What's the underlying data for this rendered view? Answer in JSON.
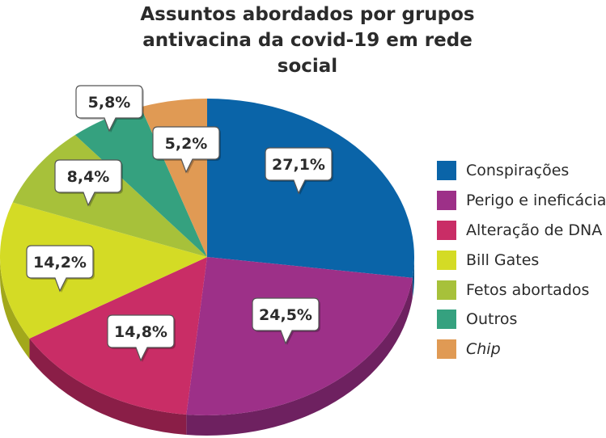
{
  "chart_data": {
    "type": "pie",
    "title_line1": "Assuntos abordados por grupos",
    "title_line2": "antivacina da covid-19 em rede social",
    "slices": [
      {
        "label": "Conspirações",
        "value": 27.1,
        "display": "27,1%",
        "color": "#0a64a8",
        "side": "#084f86",
        "italic": false
      },
      {
        "label": "Perigo e ineficácia",
        "value": 24.5,
        "display": "24,5%",
        "color": "#9d3088",
        "side": "#6e2160",
        "italic": false
      },
      {
        "label": "Alteração de DNA",
        "value": 14.8,
        "display": "14,8%",
        "color": "#c92d66",
        "side": "#8a1e47",
        "italic": false
      },
      {
        "label": "Bill Gates",
        "value": 14.2,
        "display": "14,2%",
        "color": "#d4db25",
        "side": "#a2a81b",
        "italic": false
      },
      {
        "label": "Fetos abortados",
        "value": 8.4,
        "display": "8,4%",
        "color": "#a7c13a",
        "side": "#7a8d2a",
        "italic": false
      },
      {
        "label": "Outros",
        "value": 5.8,
        "display": "5,8%",
        "color": "#35a17f",
        "side": "#25735a",
        "italic": false
      },
      {
        "label": "Chip",
        "value": 5.2,
        "display": "5,2%",
        "color": "#e09a54",
        "side": "#a86f3b",
        "italic": true
      }
    ]
  }
}
